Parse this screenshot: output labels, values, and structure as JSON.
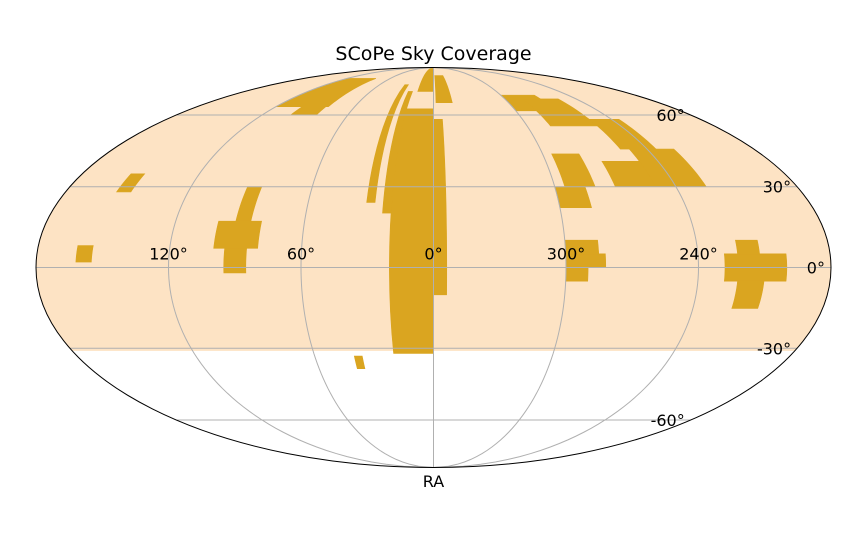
{
  "chart_data": {
    "type": "sky-map",
    "projection": "mollweide",
    "title": "SCoPe Sky Coverage",
    "xlabel": "RA",
    "ylabel": "",
    "ra_tick_labels": [
      "120°",
      "60°",
      "0°",
      "300°",
      "240°"
    ],
    "ra_ticks_deg": [
      120,
      60,
      0,
      300,
      240
    ],
    "dec_tick_labels": [
      "60°",
      "30°",
      "0°",
      "-30°",
      "-60°"
    ],
    "dec_ticks_deg": [
      60,
      30,
      0,
      -30,
      -60
    ],
    "grid": true,
    "survey_footprint": {
      "name": "",
      "dec_min": -31,
      "dec_max": 90,
      "color": "#fde3c4"
    },
    "coverage_color": "#daa520",
    "coverage_regions": [
      {
        "ra": [
          0,
          20
        ],
        "dec": [
          -32,
          63
        ]
      },
      {
        "ra": [
          20,
          24
        ],
        "dec": [
          20,
          72
        ]
      },
      {
        "ra": [
          354,
          360
        ],
        "dec": [
          -10,
          58
        ]
      },
      {
        "ra": [
          0,
          15
        ],
        "dec": [
          72,
          90
        ]
      },
      {
        "ra": [
          345,
          358
        ],
        "dec": [
          66,
          82
        ]
      },
      {
        "ra": [
          28,
          32
        ],
        "dec": [
          24,
          76
        ]
      },
      {
        "ra": [
          36,
          40
        ],
        "dec": [
          -38,
          -33
        ]
      },
      {
        "ra": [
          85,
          92
        ],
        "dec": [
          17,
          30
        ]
      },
      {
        "ra": [
          80,
          100
        ],
        "dec": [
          7,
          17
        ]
      },
      {
        "ra": [
          85,
          95
        ],
        "dec": [
          -2,
          7
        ]
      },
      {
        "ra": [
          80,
          120
        ],
        "dec": [
          64,
          80
        ]
      },
      {
        "ra": [
          82,
          100
        ],
        "dec": [
          60,
          64
        ]
      },
      {
        "ra": [
          155,
          162
        ],
        "dec": [
          2,
          8
        ]
      },
      {
        "ra": [
          148,
          155
        ],
        "dec": [
          28,
          35
        ]
      },
      {
        "ra": [
          290,
          300
        ],
        "dec": [
          -5,
          0
        ]
      },
      {
        "ra": [
          285,
          300
        ],
        "dec": [
          0,
          10
        ]
      },
      {
        "ra": [
          282,
          300
        ],
        "dec": [
          0,
          5
        ]
      },
      {
        "ra": [
          285,
          300
        ],
        "dec": [
          22,
          30
        ]
      },
      {
        "ra": [
          280,
          295
        ],
        "dec": [
          30,
          43
        ]
      },
      {
        "ra": [
          270,
          300
        ],
        "dec": [
          62,
          70
        ]
      },
      {
        "ra": [
          255,
          285
        ],
        "dec": [
          55,
          68
        ]
      },
      {
        "ra": [
          245,
          270
        ],
        "dec": [
          30,
          40
        ]
      },
      {
        "ra": [
          225,
          250
        ],
        "dec": [
          30,
          45
        ]
      },
      {
        "ra": [
          235,
          255
        ],
        "dec": [
          45,
          58
        ]
      },
      {
        "ra": [
          200,
          228
        ],
        "dec": [
          -5,
          5
        ]
      },
      {
        "ra": [
          210,
          222
        ],
        "dec": [
          -15,
          -5
        ]
      },
      {
        "ra": [
          212,
          222
        ],
        "dec": [
          5,
          10
        ]
      }
    ]
  }
}
